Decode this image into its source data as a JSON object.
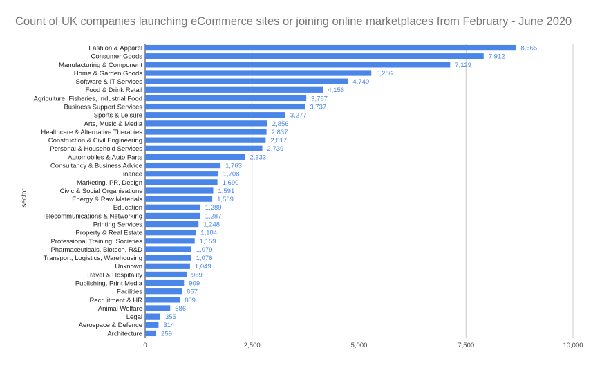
{
  "chart_data": {
    "type": "bar",
    "orientation": "horizontal",
    "title": "Count of UK companies launching eCommerce sites or joining online marketplaces from February - June 2020",
    "ylabel": "sector",
    "xlabel": "",
    "xlim": [
      0,
      10000
    ],
    "x_ticks": [
      0,
      2500,
      5000,
      7500,
      10000
    ],
    "x_tick_labels": [
      "0",
      "2,500",
      "5,000",
      "7,500",
      "10,000"
    ],
    "grid": "vertical",
    "bar_color": "#4a86e8",
    "categories": [
      "Fashion & Apparel",
      "Consumer Goods",
      "Manufacturing & Component",
      "Home & Garden Goods",
      "Software & IT Services",
      "Food & Drink Retail",
      "Agriculture, Fisheries, Industrial Food",
      "Business Support Services",
      "Sports & Leisure",
      "Arts, Music & Media",
      "Healthcare & Alternative Therapies",
      "Construction & Civil Engineering",
      "Personal & Household Services",
      "Automobiles & Auto Parts",
      "Consultancy & Business Advice",
      "Finance",
      "Marketing, PR, Design",
      "Civic & Social Organisations",
      "Energy & Raw Materials",
      "Education",
      "Telecommunications & Networking",
      "Printing Services",
      "Property & Real Estate",
      "Professional Training, Societies",
      "Pharmaceuticals, Biotech, R&D",
      "Transport, Logistics, Warehousing",
      "Unknown",
      "Travel & Hospitality",
      "Publishing, Print Media",
      "Facilities",
      "Recruitment & HR",
      "Animal Welfare",
      "Legal",
      "Aerospace & Defence",
      "Architecture"
    ],
    "values": [
      8665,
      7912,
      7129,
      5286,
      4740,
      4156,
      3767,
      3737,
      3277,
      2856,
      2837,
      2817,
      2739,
      2333,
      1763,
      1708,
      1690,
      1591,
      1569,
      1289,
      1287,
      1248,
      1184,
      1159,
      1079,
      1076,
      1049,
      969,
      909,
      857,
      809,
      586,
      355,
      314,
      259
    ],
    "value_labels": [
      "8,665",
      "7,912",
      "7,129",
      "5,286",
      "4,740",
      "4,156",
      "3,767",
      "3,737",
      "3,277",
      "2,856",
      "2,837",
      "2,817",
      "2,739",
      "2,333",
      "1,763",
      "1,708",
      "1,690",
      "1,591",
      "1,569",
      "1,289",
      "1,287",
      "1,248",
      "1,184",
      "1,159",
      "1,079",
      "1,076",
      "1,049",
      "969",
      "909",
      "857",
      "809",
      "586",
      "355",
      "314",
      "259"
    ]
  }
}
